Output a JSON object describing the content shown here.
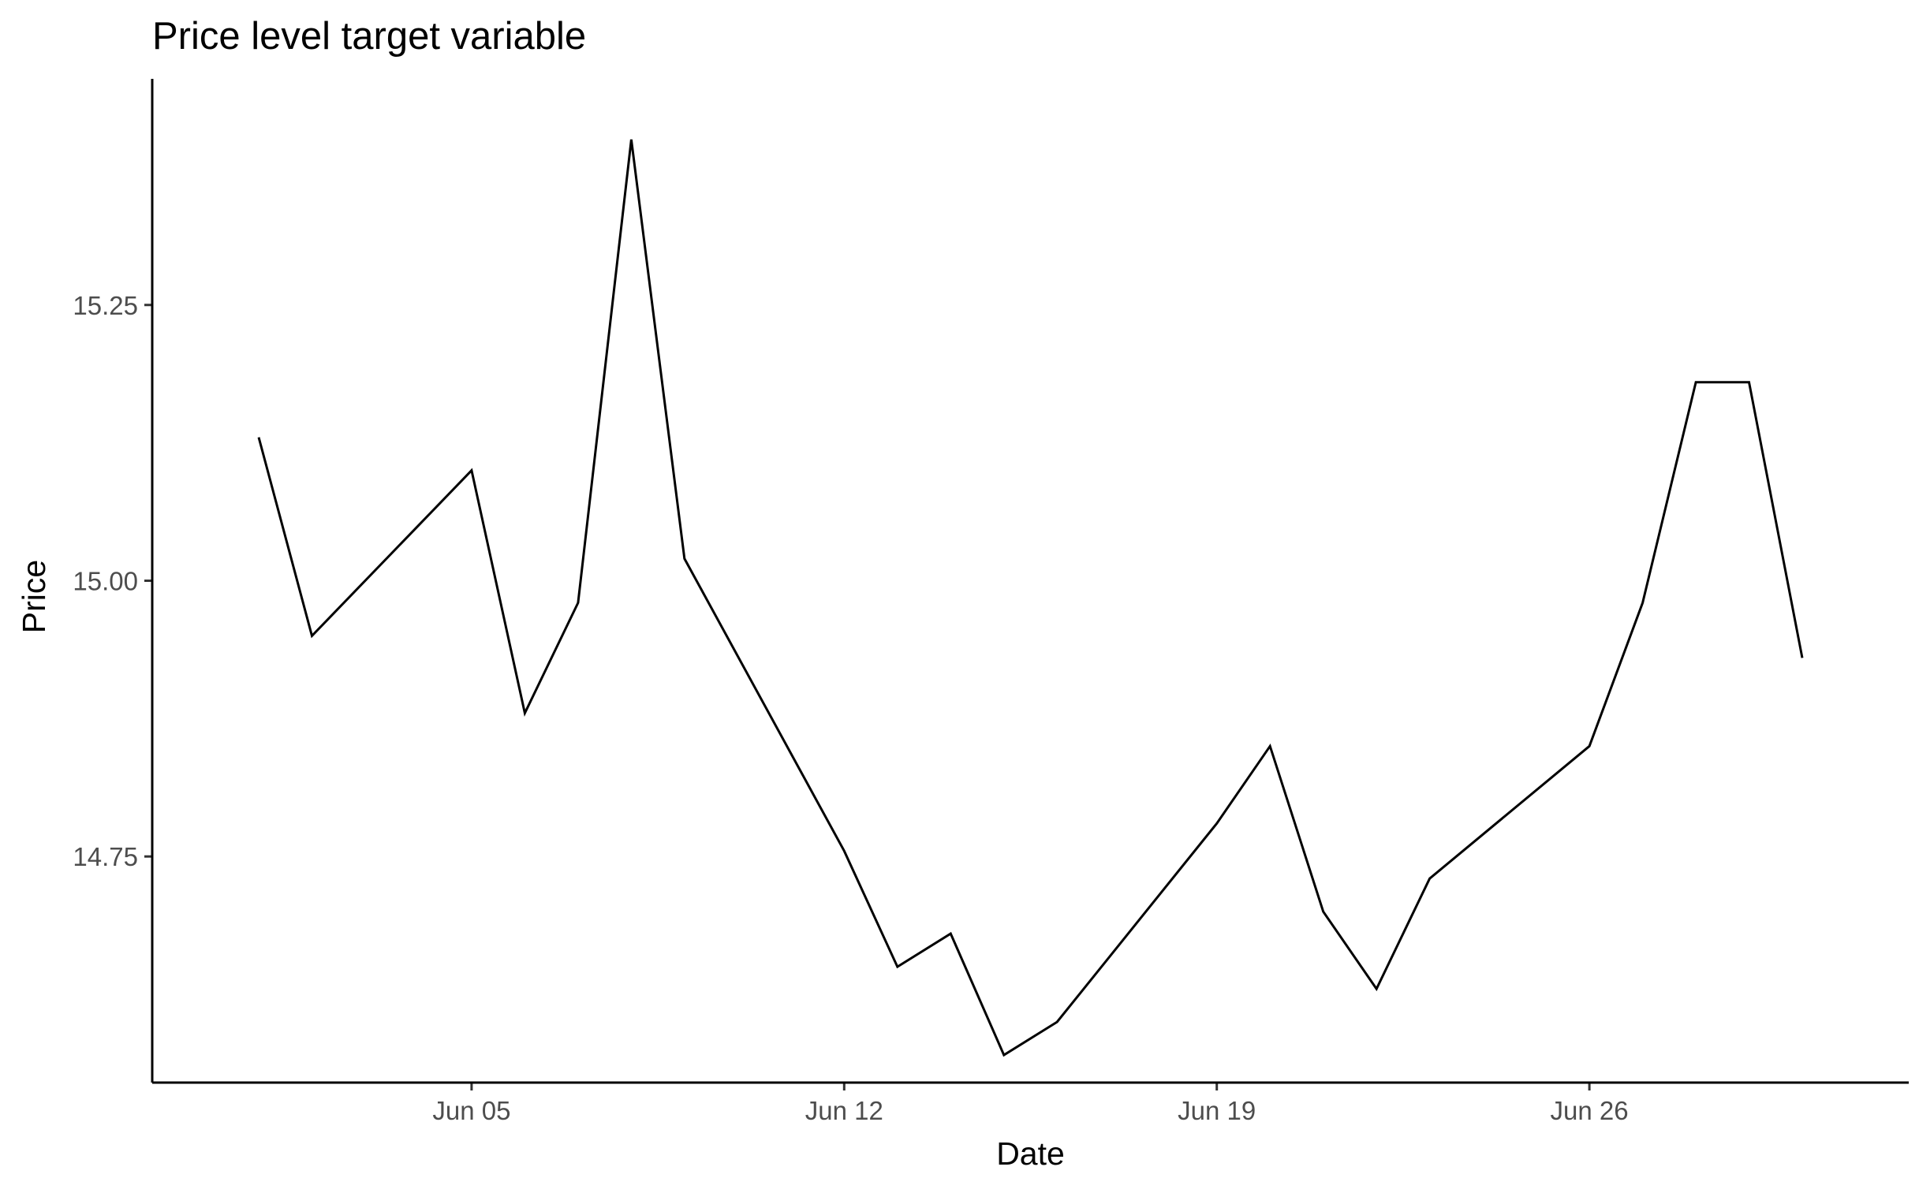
{
  "chart_data": {
    "type": "line",
    "title": "Price level target variable",
    "xlabel": "Date",
    "ylabel": "Price",
    "x_type": "date",
    "x": [
      "2020-06-01",
      "2020-06-02",
      "2020-06-05",
      "2020-06-06",
      "2020-06-07",
      "2020-06-08",
      "2020-06-09",
      "2020-06-12",
      "2020-06-13",
      "2020-06-14",
      "2020-06-15",
      "2020-06-16",
      "2020-06-19",
      "2020-06-20",
      "2020-06-21",
      "2020-06-22",
      "2020-06-23",
      "2020-06-26",
      "2020-06-27",
      "2020-06-28",
      "2020-06-29",
      "2020-06-30"
    ],
    "series": [
      {
        "values": [
          15.13,
          14.95,
          15.1,
          14.88,
          14.98,
          15.4,
          15.02,
          14.755,
          14.65,
          14.68,
          14.57,
          14.6,
          14.78,
          14.85,
          14.7,
          14.63,
          14.73,
          14.85,
          14.98,
          15.18,
          15.18,
          14.93
        ],
        "color": "#000000"
      }
    ],
    "xlim": [
      "2020-05-30",
      "2020-07-02"
    ],
    "ylim": [
      14.545,
      15.455
    ],
    "x_ticks": [
      {
        "date": "2020-06-05",
        "label": "Jun 05"
      },
      {
        "date": "2020-06-12",
        "label": "Jun 12"
      },
      {
        "date": "2020-06-19",
        "label": "Jun 19"
      },
      {
        "date": "2020-06-26",
        "label": "Jun 26"
      }
    ],
    "y_ticks": [
      {
        "value": 14.75,
        "label": "14.75"
      },
      {
        "value": 15.0,
        "label": "15.00"
      },
      {
        "value": 15.25,
        "label": "15.25"
      }
    ],
    "grid": false,
    "legend": "none"
  }
}
